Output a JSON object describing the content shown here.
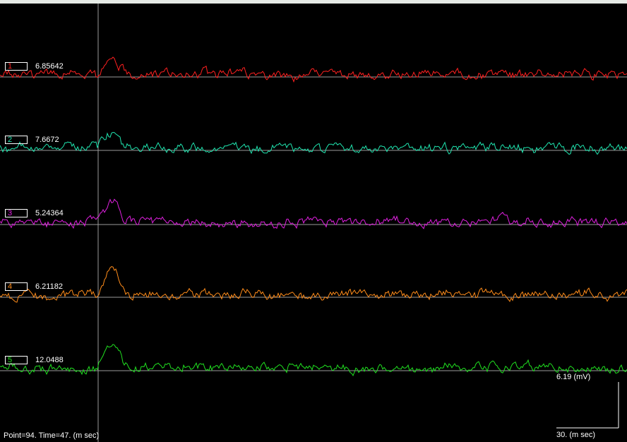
{
  "channels": [
    {
      "label": "1",
      "value": "6.85642",
      "color": "#ff2020"
    },
    {
      "label": "2",
      "value": "7.6672",
      "color": "#20e6b0"
    },
    {
      "label": "3",
      "value": "5.24364",
      "color": "#e020e0"
    },
    {
      "label": "4",
      "value": "6.21182",
      "color": "#ff8c1a"
    },
    {
      "label": "5",
      "value": "12.0488",
      "color": "#20e020"
    }
  ],
  "status": {
    "text": "Point=94.  Time=47. (m sec)"
  },
  "scale": {
    "amplitude_label": "6.19 (mV)",
    "time_label": "30. (m sec)"
  },
  "cursor": {
    "time_ms": 47
  },
  "colors": {
    "background": "#000000",
    "baseline": "#9a9a9a",
    "cursor_line": "#9a9a9a",
    "scale_bar": "#ffffff"
  }
}
